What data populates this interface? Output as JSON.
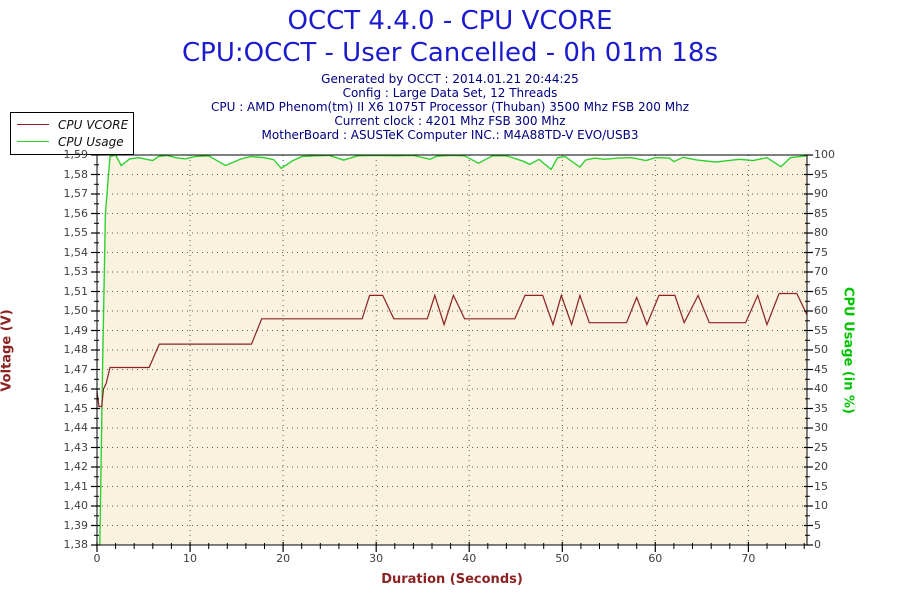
{
  "header": {
    "title_line1": "OCCT 4.4.0 - CPU VCORE",
    "title_line2": "CPU:OCCT - User Cancelled - 0h 01m 18s",
    "info_lines": [
      "Generated by OCCT : 2014.01.21 20:44:25",
      "Config : Large Data Set, 12 Threads",
      "CPU : AMD Phenom(tm) II X6 1075T Processor (Thuban) 3500 Mhz FSB 200 Mhz",
      "Current clock : 4201 Mhz FSB 300 Mhz",
      "MotherBoard : ASUSTeK Computer INC.: M4A88TD-V EVO/USB3"
    ]
  },
  "colors": {
    "title_blue": "#1b1bcd",
    "info_navy": "#000080",
    "vcore_maroon": "#8B2323",
    "usage_green": "#2fd12f",
    "usage_title_green": "#00C400",
    "area_fill_cream": "#FAF1DE",
    "axis_black": "#000000",
    "tick_label_gray": "#404040"
  },
  "legend": {
    "items": [
      {
        "label": "CPU VCORE",
        "color": "#8B2323"
      },
      {
        "label": "CPU Usage",
        "color": "#2fd12f"
      }
    ]
  },
  "chart_data": {
    "type": "line",
    "title": "OCCT 4.4.0 - CPU VCORE",
    "subtitle": "CPU:OCCT - User Cancelled - 0h 01m 18s",
    "grid": "dotted horizontal at each voltage step, vertical every 10 s",
    "legend_position": "top-left",
    "x_axis": {
      "title": "Duration (Seconds)",
      "range": [
        0,
        76.3
      ],
      "major_tick_labels": [
        "0",
        "10",
        "20",
        "30",
        "40",
        "50",
        "60",
        "70"
      ],
      "major_tick_values": [
        0,
        10,
        20,
        30,
        40,
        50,
        60,
        70
      ],
      "minor_tick_step": 2
    },
    "y_left_axis": {
      "title": "Voltage (V)",
      "range": [
        1.38,
        1.58
      ],
      "tick_labels_top_to_bottom": [
        "1,59",
        "1,58",
        "1,57",
        "1,56",
        "1,55",
        "1,54",
        "1,53",
        "1,51",
        "1,50",
        "1,49",
        "1,48",
        "1,47",
        "1,46",
        "1,45",
        "1,44",
        "1,43",
        "1,42",
        "1,41",
        "1,40",
        "1,39",
        "1,38"
      ]
    },
    "y_right_axis": {
      "title": "CPU Usage (in %)",
      "range": [
        0,
        100
      ],
      "tick_labels_top_to_bottom": [
        "100",
        "95",
        "90",
        "85",
        "80",
        "75",
        "70",
        "65",
        "60",
        "55",
        "50",
        "45",
        "40",
        "35",
        "30",
        "25",
        "20",
        "15",
        "10",
        "5",
        "0"
      ]
    },
    "series": [
      {
        "name": "CPU VCORE",
        "axis": "left",
        "color": "#8B2323",
        "unit": "V",
        "points": [
          [
            0,
            1.459
          ],
          [
            0.2,
            1.451
          ],
          [
            0.5,
            1.451
          ],
          [
            0.7,
            1.46
          ],
          [
            1.0,
            1.463
          ],
          [
            1.4,
            1.471
          ],
          [
            5.6,
            1.471
          ],
          [
            6.7,
            1.483
          ],
          [
            16.6,
            1.483
          ],
          [
            17.7,
            1.496
          ],
          [
            28.5,
            1.496
          ],
          [
            29.3,
            1.508
          ],
          [
            30.7,
            1.508
          ],
          [
            31.9,
            1.496
          ],
          [
            35.5,
            1.496
          ],
          [
            36.3,
            1.508
          ],
          [
            37.3,
            1.493
          ],
          [
            38.3,
            1.508
          ],
          [
            39.5,
            1.496
          ],
          [
            44.9,
            1.496
          ],
          [
            46.0,
            1.508
          ],
          [
            47.9,
            1.508
          ],
          [
            49.0,
            1.493
          ],
          [
            49.9,
            1.508
          ],
          [
            51.0,
            1.493
          ],
          [
            51.9,
            1.508
          ],
          [
            52.9,
            1.494
          ],
          [
            56.9,
            1.494
          ],
          [
            58.0,
            1.507
          ],
          [
            59.1,
            1.493
          ],
          [
            60.4,
            1.508
          ],
          [
            62.1,
            1.508
          ],
          [
            63.1,
            1.494
          ],
          [
            64.6,
            1.508
          ],
          [
            65.8,
            1.494
          ],
          [
            69.7,
            1.494
          ],
          [
            71.0,
            1.508
          ],
          [
            72.0,
            1.493
          ],
          [
            73.3,
            1.509
          ],
          [
            75.2,
            1.509
          ],
          [
            76.3,
            1.498
          ]
        ]
      },
      {
        "name": "CPU Usage",
        "axis": "right",
        "color": "#2fd12f",
        "unit": "%",
        "area_fill": "#FAF1DE",
        "points": [
          [
            0.3,
            0
          ],
          [
            0.6,
            46
          ],
          [
            0.9,
            85
          ],
          [
            1.4,
            99.6
          ],
          [
            2.0,
            100
          ],
          [
            2.6,
            97.3
          ],
          [
            3.5,
            99.0
          ],
          [
            4.5,
            99.3
          ],
          [
            5.5,
            98.8
          ],
          [
            6.0,
            98.6
          ],
          [
            6.6,
            99.6
          ],
          [
            7.5,
            99.9
          ],
          [
            8.5,
            99.3
          ],
          [
            9.5,
            99.0
          ],
          [
            10.5,
            99.6
          ],
          [
            12,
            99.8
          ],
          [
            13.8,
            97.3
          ],
          [
            15.5,
            99.0
          ],
          [
            16.5,
            99.6
          ],
          [
            18,
            99.3
          ],
          [
            19,
            98.8
          ],
          [
            19.8,
            96.6
          ],
          [
            21,
            98.5
          ],
          [
            22,
            99.6
          ],
          [
            23.5,
            99.8
          ],
          [
            25,
            99.9
          ],
          [
            26.5,
            98.7
          ],
          [
            28,
            99.8
          ],
          [
            30,
            99.9
          ],
          [
            32,
            99.8
          ],
          [
            34,
            99.9
          ],
          [
            35.8,
            98.9
          ],
          [
            36.5,
            99.7
          ],
          [
            38,
            99.9
          ],
          [
            39.5,
            99.8
          ],
          [
            41,
            97.9
          ],
          [
            42.5,
            99.8
          ],
          [
            44,
            99.8
          ],
          [
            45.8,
            98.4
          ],
          [
            46.5,
            97.6
          ],
          [
            47.5,
            98.9
          ],
          [
            48.8,
            96.3
          ],
          [
            49.5,
            99.3
          ],
          [
            50.3,
            99.6
          ],
          [
            51.9,
            96.9
          ],
          [
            52.5,
            98.7
          ],
          [
            53.5,
            99.2
          ],
          [
            54.5,
            98.9
          ],
          [
            56,
            99.2
          ],
          [
            57.5,
            99.3
          ],
          [
            59,
            98.6
          ],
          [
            60,
            99.3
          ],
          [
            61.5,
            99.2
          ],
          [
            62,
            98.3
          ],
          [
            63,
            99.4
          ],
          [
            64.5,
            98.7
          ],
          [
            66.5,
            98.2
          ],
          [
            67.5,
            98.5
          ],
          [
            69,
            98.9
          ],
          [
            70.5,
            98.6
          ],
          [
            72,
            99.3
          ],
          [
            73.5,
            97.0
          ],
          [
            74.5,
            99.3
          ],
          [
            75.5,
            99.6
          ],
          [
            76.3,
            99.8
          ]
        ]
      }
    ]
  }
}
